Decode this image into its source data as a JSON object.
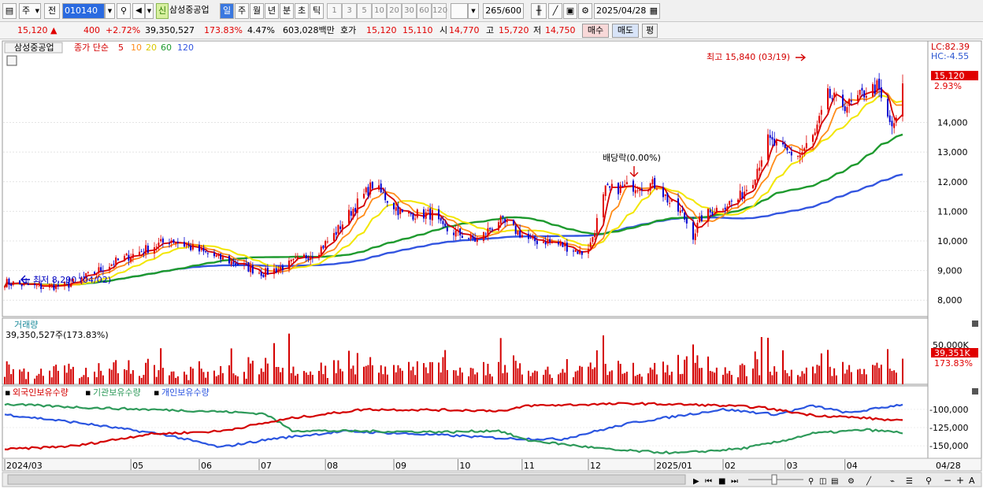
{
  "toolbar": {
    "type_select": "주",
    "prev_label": "전",
    "code": "010140",
    "badge": "신",
    "stock_name": "삼성중공업",
    "periods": [
      "일",
      "주",
      "월",
      "년",
      "분",
      "초",
      "틱"
    ],
    "intervals": [
      "1",
      "3",
      "5",
      "10",
      "20",
      "30",
      "60",
      "120"
    ],
    "count": "265",
    "count_total": "/600",
    "date": "2025/04/28"
  },
  "quote": {
    "price": "15,120",
    "change_arrow": "▲",
    "change": "400",
    "change_pct": "+2.72%",
    "volume": "39,350,527",
    "volume_ratio": "173.83%",
    "turnover_pct": "4.47%",
    "amount": "603,028백만",
    "ask_label": "호가",
    "ask1": "15,120",
    "ask2": "15,110",
    "open_label": "시",
    "open": "14,770",
    "high_label": "고",
    "high": "15,720",
    "low_label": "저",
    "low": "14,750",
    "buy_button": "매수",
    "sell_button": "매도",
    "eval_button": "평"
  },
  "colors": {
    "up": "#e00000",
    "down": "#0000d0",
    "ma5": "#d40000",
    "ma10": "#ff8c1a",
    "ma20": "#f2e600",
    "ma60": "#1e9a2e",
    "ma120": "#3355e0",
    "volume": "#d40000",
    "foreign": "#2b55e0",
    "institution": "#2e9a5a",
    "individual": "#d40000"
  },
  "chart_data": [
    {
      "type": "candlestick",
      "name": "price",
      "legend": {
        "stock": "삼성중공업",
        "label": "종가 단순",
        "ma_periods": [
          "5",
          "10",
          "20",
          "60",
          "120"
        ]
      },
      "x": [
        "2024/03",
        "05",
        "06",
        "07",
        "08",
        "09",
        "10",
        "11",
        "12",
        "2025/01",
        "02",
        "03",
        "04"
      ],
      "x_end_label": "04/28",
      "ylim": [
        7500,
        16700
      ],
      "y_ticks": [
        "8,000",
        "9,000",
        "10,000",
        "11,000",
        "12,000",
        "13,000",
        "14,000"
      ],
      "last_price": "15,120",
      "last_change": "2.93%",
      "lc": "LC:82.39",
      "hc": "HC:-4.55",
      "annotations": {
        "high": "최고 15,840 (03/19)",
        "low": "최저 8,290 (04/02)",
        "dividend": "배당락(0.00%)"
      },
      "trend": [
        [
          "2024-03-04",
          8600
        ],
        [
          "2024-03-20",
          8450
        ],
        [
          "2024-04-02",
          8500
        ],
        [
          "2024-04-10",
          8750
        ],
        [
          "2024-04-25",
          9300
        ],
        [
          "2024-05-10",
          9750
        ],
        [
          "2024-05-21",
          10050
        ],
        [
          "2024-06-05",
          9600
        ],
        [
          "2024-06-20",
          9250
        ],
        [
          "2024-07-03",
          8900
        ],
        [
          "2024-07-15",
          9200
        ],
        [
          "2024-07-29",
          9700
        ],
        [
          "2024-08-05",
          10200
        ],
        [
          "2024-08-13",
          11000
        ],
        [
          "2024-08-23",
          11900
        ],
        [
          "2024-08-30",
          11400
        ],
        [
          "2024-09-06",
          10900
        ],
        [
          "2024-09-20",
          10900
        ],
        [
          "2024-09-25",
          10400
        ],
        [
          "2024-10-04",
          10200
        ],
        [
          "2024-10-11",
          10000
        ],
        [
          "2024-10-21",
          10700
        ],
        [
          "2024-10-28",
          10400
        ],
        [
          "2024-11-05",
          10000
        ],
        [
          "2024-11-12",
          10000
        ],
        [
          "2024-11-22",
          9800
        ],
        [
          "2024-11-29",
          9600
        ],
        [
          "2024-12-03",
          9900
        ],
        [
          "2024-12-10",
          11700
        ],
        [
          "2024-12-18",
          11800
        ],
        [
          "2024-12-27",
          11900
        ],
        [
          "2025-01-03",
          11900
        ],
        [
          "2025-01-10",
          11200
        ],
        [
          "2025-01-15",
          10900
        ],
        [
          "2025-01-20",
          10200
        ],
        [
          "2025-01-24",
          10800
        ],
        [
          "2025-02-03",
          11200
        ],
        [
          "2025-02-10",
          11400
        ],
        [
          "2025-02-17",
          12100
        ],
        [
          "2025-02-24",
          13400
        ],
        [
          "2025-03-04",
          13000
        ],
        [
          "2025-03-11",
          12900
        ],
        [
          "2025-03-18",
          13600
        ],
        [
          "2025-03-24",
          14900
        ],
        [
          "2025-03-31",
          14600
        ],
        [
          "2025-04-04",
          14600
        ],
        [
          "2025-04-10",
          15000
        ],
        [
          "2025-04-16",
          15200
        ],
        [
          "2025-04-21",
          14100
        ],
        [
          "2025-04-24",
          13800
        ],
        [
          "2025-04-28",
          15120
        ]
      ]
    },
    {
      "type": "bar",
      "name": "volume",
      "title": "거래량",
      "current": "39,350,527주(173.83%)",
      "ylim": [
        0,
        80000
      ],
      "y_tick": "50,000K",
      "last_value": "39,351K",
      "last_ratio": "173.83%"
    },
    {
      "type": "line",
      "name": "holdings",
      "series": [
        {
          "name": "외국인보유수량"
        },
        {
          "name": "기관보유수량"
        },
        {
          "name": "개인보유수량"
        }
      ],
      "y_ticks": [
        "-100,000",
        "-125,000",
        "-150,000"
      ],
      "ylim": [
        -165000,
        -85000
      ]
    }
  ]
}
